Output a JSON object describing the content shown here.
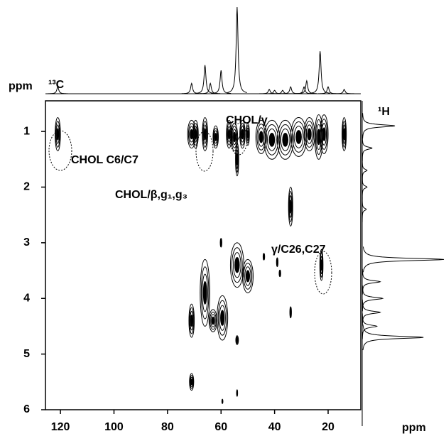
{
  "chart_data": {
    "type": "contour",
    "x_axis_label": "ppm",
    "y_axis_label": "ppm",
    "x_nucleus": "¹³C",
    "y_nucleus": "¹H",
    "xlim": [
      125.6,
      7.8
    ],
    "ylim": [
      0.45,
      6
    ],
    "xticks": [
      120,
      100,
      80,
      60,
      40,
      20
    ],
    "yticks": [
      1,
      2,
      3,
      4,
      5,
      6
    ],
    "color": "#000000",
    "annotations": [
      "CHOL C6/C7",
      "CHOL/γ",
      "CHOL/β,g₁,g₃",
      "γ/C26,C27"
    ],
    "peaks": {
      "x": [
        121,
        71,
        69.5,
        66,
        62,
        57,
        55,
        54,
        52,
        50,
        45,
        41,
        36,
        31,
        27,
        23.5,
        21.5,
        14,
        34,
        54,
        50,
        60,
        44,
        39,
        38,
        22.5,
        34,
        66,
        63,
        59.5,
        71,
        54,
        71,
        54,
        59.5
      ],
      "y": [
        1.05,
        1.05,
        1.05,
        1.05,
        1.1,
        1.05,
        1.1,
        1.5,
        1.05,
        1.05,
        1.1,
        1.15,
        1.15,
        1.1,
        1.05,
        1.1,
        1.05,
        1.05,
        2.35,
        3.4,
        3.6,
        3.0,
        3.25,
        3.35,
        3.55,
        3.4,
        4.25,
        3.9,
        4.4,
        4.35,
        4.4,
        4.75,
        5.5,
        5.7,
        5.85
      ],
      "x_width": [
        1,
        1.5,
        1,
        1,
        1,
        1,
        1.2,
        0.6,
        1,
        0.6,
        2,
        3,
        3,
        3,
        2,
        1.5,
        1.5,
        0.8,
        0.8,
        2.5,
        2,
        0.3,
        0.3,
        0.3,
        0.3,
        0.6,
        0.3,
        1.8,
        1.5,
        2,
        1,
        0.5,
        0.8,
        0.2,
        0.2
      ],
      "y_width": [
        0.3,
        0.25,
        0.25,
        0.3,
        0.2,
        0.25,
        0.25,
        0.3,
        0.25,
        0.2,
        0.3,
        0.35,
        0.35,
        0.35,
        0.3,
        0.4,
        0.35,
        0.3,
        0.35,
        0.4,
        0.3,
        0.08,
        0.06,
        0.08,
        0.06,
        0.28,
        0.1,
        0.6,
        0.2,
        0.4,
        0.3,
        0.08,
        0.15,
        0.06,
        0.04
      ]
    },
    "top_projection": {
      "ylim": [
        0,
        100
      ],
      "x": [
        121,
        71,
        66,
        64,
        60,
        54,
        42,
        40,
        37,
        34,
        29,
        28,
        23,
        20,
        14
      ],
      "values": [
        8,
        12,
        33,
        12,
        27,
        100,
        5,
        4,
        4,
        8,
        8,
        15,
        49,
        8,
        5
      ]
    },
    "right_projection": {
      "xlim": [
        0,
        100
      ],
      "y": [
        0.9,
        1.3,
        1.7,
        2.0,
        2.4,
        3.3,
        3.7,
        4.0,
        4.25,
        4.5,
        4.7
      ],
      "values": [
        40,
        12,
        6,
        6,
        5,
        100,
        22,
        25,
        22,
        18,
        75
      ]
    }
  }
}
